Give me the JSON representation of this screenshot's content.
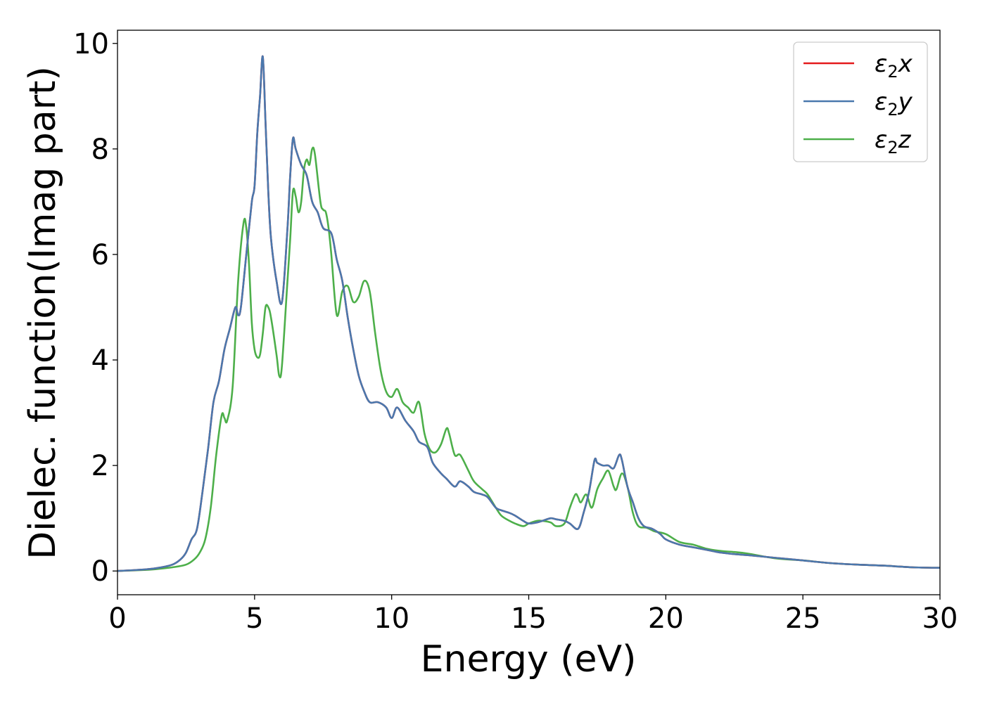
{
  "chart_data": {
    "type": "line",
    "xlabel": "Energy (eV)",
    "ylabel": "Dielec. function(Imag part)",
    "xlim": [
      0,
      30
    ],
    "ylim": [
      -0.45,
      10.25
    ],
    "xticks": [
      0,
      5,
      10,
      15,
      20,
      25,
      30
    ],
    "yticks": [
      0,
      2,
      4,
      6,
      8,
      10
    ],
    "grid": false,
    "legend_position": "top-right",
    "series": [
      {
        "name": "ε2x",
        "legend": {
          "base": "ε",
          "sub": "2",
          "var": "x"
        },
        "color": "#e41a1c",
        "x": [
          0,
          1,
          1.5,
          2,
          2.3,
          2.5,
          2.7,
          2.9,
          3.1,
          3.3,
          3.5,
          3.7,
          3.9,
          4.1,
          4.3,
          4.4,
          4.5,
          4.7,
          4.9,
          5.0,
          5.1,
          5.2,
          5.3,
          5.4,
          5.5,
          5.6,
          5.8,
          6.0,
          6.2,
          6.3,
          6.4,
          6.5,
          6.7,
          6.9,
          7.1,
          7.3,
          7.5,
          7.8,
          8.0,
          8.2,
          8.4,
          8.6,
          8.8,
          9.0,
          9.2,
          9.5,
          9.8,
          10.0,
          10.2,
          10.5,
          10.8,
          11.0,
          11.3,
          11.5,
          11.8,
          12.0,
          12.3,
          12.5,
          12.8,
          13.0,
          13.3,
          13.5,
          13.8,
          14.0,
          14.3,
          14.5,
          14.8,
          15.0,
          15.3,
          15.5,
          15.8,
          16.0,
          16.3,
          16.5,
          16.8,
          17.0,
          17.2,
          17.4,
          17.5,
          17.7,
          17.9,
          18.1,
          18.3,
          18.4,
          18.6,
          18.8,
          19.0,
          19.2,
          19.5,
          19.8,
          20.0,
          20.5,
          21.0,
          21.5,
          22.0,
          22.5,
          23.0,
          24.0,
          25.0,
          26.0,
          27.0,
          28.0,
          29.0,
          30.0
        ],
        "y": [
          0,
          0.03,
          0.06,
          0.12,
          0.22,
          0.35,
          0.6,
          0.8,
          1.5,
          2.3,
          3.2,
          3.6,
          4.2,
          4.6,
          5.0,
          4.85,
          5.0,
          6.0,
          7.0,
          7.3,
          8.3,
          9.0,
          9.75,
          8.5,
          7.2,
          6.3,
          5.5,
          5.1,
          6.5,
          7.5,
          8.2,
          8.0,
          7.7,
          7.5,
          7.0,
          6.8,
          6.5,
          6.4,
          5.9,
          5.5,
          4.8,
          4.2,
          3.7,
          3.4,
          3.2,
          3.2,
          3.1,
          2.9,
          3.1,
          2.85,
          2.65,
          2.45,
          2.35,
          2.05,
          1.85,
          1.75,
          1.6,
          1.7,
          1.6,
          1.5,
          1.45,
          1.4,
          1.2,
          1.15,
          1.1,
          1.05,
          0.95,
          0.9,
          0.92,
          0.95,
          1.0,
          0.98,
          0.95,
          0.9,
          0.8,
          1.1,
          1.5,
          2.1,
          2.05,
          2.0,
          2.0,
          1.95,
          2.2,
          2.1,
          1.6,
          1.3,
          1.0,
          0.85,
          0.8,
          0.7,
          0.6,
          0.5,
          0.45,
          0.4,
          0.35,
          0.32,
          0.3,
          0.25,
          0.2,
          0.15,
          0.12,
          0.1,
          0.07,
          0.06
        ]
      },
      {
        "name": "ε2y",
        "legend": {
          "base": "ε",
          "sub": "2",
          "var": "y"
        },
        "color": "#4a78ad",
        "x": [
          0,
          1,
          1.5,
          2,
          2.3,
          2.5,
          2.7,
          2.9,
          3.1,
          3.3,
          3.5,
          3.7,
          3.9,
          4.1,
          4.3,
          4.4,
          4.5,
          4.7,
          4.9,
          5.0,
          5.1,
          5.2,
          5.3,
          5.4,
          5.5,
          5.6,
          5.8,
          6.0,
          6.2,
          6.3,
          6.4,
          6.5,
          6.7,
          6.9,
          7.1,
          7.3,
          7.5,
          7.8,
          8.0,
          8.2,
          8.4,
          8.6,
          8.8,
          9.0,
          9.2,
          9.5,
          9.8,
          10.0,
          10.2,
          10.5,
          10.8,
          11.0,
          11.3,
          11.5,
          11.8,
          12.0,
          12.3,
          12.5,
          12.8,
          13.0,
          13.3,
          13.5,
          13.8,
          14.0,
          14.3,
          14.5,
          14.8,
          15.0,
          15.3,
          15.5,
          15.8,
          16.0,
          16.3,
          16.5,
          16.8,
          17.0,
          17.2,
          17.4,
          17.5,
          17.7,
          17.9,
          18.1,
          18.3,
          18.4,
          18.6,
          18.8,
          19.0,
          19.2,
          19.5,
          19.8,
          20.0,
          20.5,
          21.0,
          21.5,
          22.0,
          22.5,
          23.0,
          24.0,
          25.0,
          26.0,
          27.0,
          28.0,
          29.0,
          30.0
        ],
        "y": [
          0,
          0.03,
          0.06,
          0.12,
          0.22,
          0.35,
          0.6,
          0.8,
          1.5,
          2.3,
          3.2,
          3.6,
          4.2,
          4.6,
          5.0,
          4.85,
          5.0,
          6.0,
          7.0,
          7.3,
          8.3,
          9.0,
          9.75,
          8.5,
          7.2,
          6.3,
          5.5,
          5.1,
          6.5,
          7.5,
          8.2,
          8.0,
          7.7,
          7.5,
          7.0,
          6.8,
          6.5,
          6.4,
          5.9,
          5.5,
          4.8,
          4.2,
          3.7,
          3.4,
          3.2,
          3.2,
          3.1,
          2.9,
          3.1,
          2.85,
          2.65,
          2.45,
          2.35,
          2.05,
          1.85,
          1.75,
          1.6,
          1.7,
          1.6,
          1.5,
          1.45,
          1.4,
          1.2,
          1.15,
          1.1,
          1.05,
          0.95,
          0.9,
          0.92,
          0.95,
          1.0,
          0.98,
          0.95,
          0.9,
          0.8,
          1.1,
          1.5,
          2.1,
          2.05,
          2.0,
          2.0,
          1.95,
          2.2,
          2.1,
          1.6,
          1.3,
          1.0,
          0.85,
          0.8,
          0.7,
          0.6,
          0.5,
          0.45,
          0.4,
          0.35,
          0.32,
          0.3,
          0.25,
          0.2,
          0.15,
          0.12,
          0.1,
          0.07,
          0.06
        ]
      },
      {
        "name": "ε2z",
        "legend": {
          "base": "ε",
          "sub": "2",
          "var": "z"
        },
        "color": "#4daf4a",
        "x": [
          0,
          1,
          1.5,
          2,
          2.5,
          2.8,
          3.0,
          3.2,
          3.4,
          3.6,
          3.8,
          3.9,
          4.0,
          4.2,
          4.4,
          4.6,
          4.7,
          4.8,
          4.9,
          5.0,
          5.1,
          5.2,
          5.3,
          5.4,
          5.5,
          5.6,
          5.8,
          5.9,
          6.0,
          6.2,
          6.3,
          6.4,
          6.5,
          6.6,
          6.7,
          6.8,
          6.9,
          7.0,
          7.1,
          7.2,
          7.4,
          7.5,
          7.6,
          7.7,
          7.8,
          8.0,
          8.2,
          8.4,
          8.6,
          8.8,
          9.0,
          9.2,
          9.4,
          9.6,
          9.8,
          10.0,
          10.2,
          10.4,
          10.6,
          10.8,
          11.0,
          11.2,
          11.4,
          11.6,
          11.8,
          12.0,
          12.1,
          12.3,
          12.5,
          12.8,
          13.0,
          13.3,
          13.5,
          13.8,
          14.0,
          14.3,
          14.5,
          14.8,
          15.0,
          15.3,
          15.5,
          15.8,
          16.0,
          16.3,
          16.5,
          16.7,
          16.8,
          16.9,
          17.1,
          17.3,
          17.5,
          17.7,
          17.9,
          18.1,
          18.2,
          18.4,
          18.6,
          18.8,
          19.0,
          19.3,
          19.6,
          20.0,
          20.5,
          21.0,
          21.5,
          22.0,
          22.5,
          23.0,
          24.0,
          25.0,
          26.0,
          27.0,
          28.0,
          29.0,
          30.0
        ],
        "y": [
          0,
          0.02,
          0.04,
          0.07,
          0.12,
          0.22,
          0.35,
          0.6,
          1.2,
          2.2,
          2.95,
          2.9,
          2.85,
          3.5,
          5.5,
          6.6,
          6.5,
          5.8,
          4.7,
          4.2,
          4.05,
          4.1,
          4.5,
          5.0,
          5.0,
          4.8,
          4.1,
          3.7,
          3.9,
          5.5,
          6.3,
          7.2,
          7.1,
          6.8,
          7.0,
          7.6,
          7.8,
          7.7,
          8.0,
          7.9,
          7.0,
          6.85,
          6.8,
          6.5,
          6.0,
          4.85,
          5.3,
          5.4,
          5.1,
          5.2,
          5.5,
          5.3,
          4.5,
          3.8,
          3.4,
          3.3,
          3.45,
          3.2,
          3.1,
          3.0,
          3.2,
          2.6,
          2.3,
          2.25,
          2.4,
          2.7,
          2.6,
          2.2,
          2.2,
          1.9,
          1.7,
          1.55,
          1.45,
          1.2,
          1.05,
          0.95,
          0.9,
          0.85,
          0.9,
          0.95,
          0.95,
          0.92,
          0.85,
          0.9,
          1.2,
          1.45,
          1.4,
          1.3,
          1.45,
          1.2,
          1.55,
          1.75,
          1.9,
          1.6,
          1.55,
          1.85,
          1.6,
          1.1,
          0.85,
          0.82,
          0.75,
          0.7,
          0.55,
          0.5,
          0.42,
          0.38,
          0.36,
          0.33,
          0.24,
          0.2,
          0.15,
          0.12,
          0.1,
          0.07,
          0.06
        ]
      }
    ]
  }
}
